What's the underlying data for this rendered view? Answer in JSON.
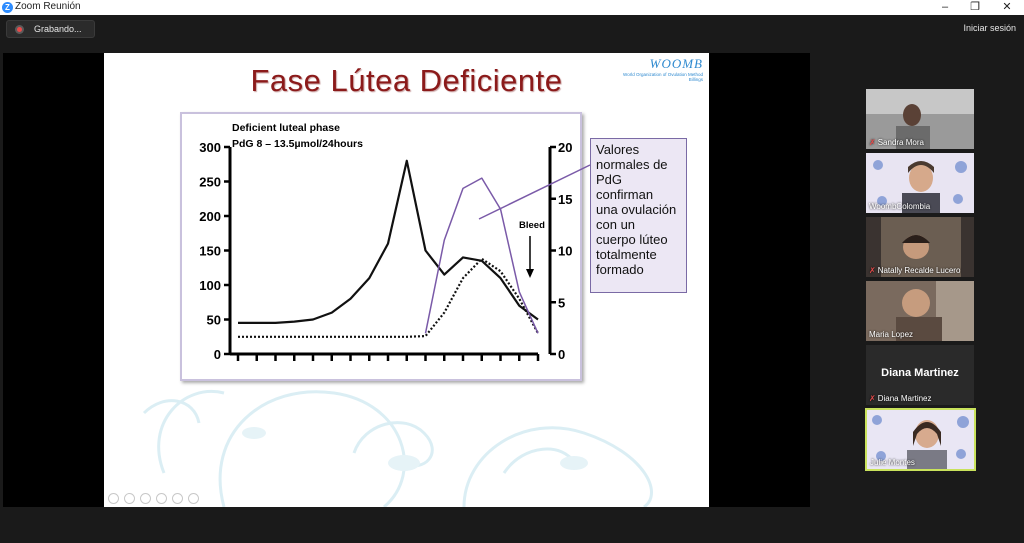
{
  "window": {
    "title": "Zoom Reunión",
    "minimize": "–",
    "maximize": "❐",
    "close": "✕"
  },
  "toolbar": {
    "recording_label": "Grabando...",
    "signin_label": "Iniciar sesión"
  },
  "slide": {
    "title": "Fase Lútea Deficiente",
    "logo_text": "WOOMB",
    "logo_subtext": "World Organization of Ovulation Method Billings",
    "callout_lines": [
      "Valores",
      "normales de",
      "PdG",
      "confirman",
      "una ovulación",
      "con un",
      "cuerpo lúteo",
      "totalmente",
      "formado"
    ]
  },
  "chart_data": {
    "type": "line",
    "title": "Deficient luteal phase",
    "subtitle": "PdG 8 – 13.5µmol/24hours",
    "annotation": "Bleed",
    "left_axis": {
      "ticks": [
        "300",
        "250",
        "200",
        "150",
        "100",
        "50",
        "0"
      ],
      "range": [
        0,
        300
      ]
    },
    "right_axis": {
      "ticks": [
        "20",
        "15",
        "10",
        "5",
        "0"
      ],
      "range": [
        0,
        20
      ]
    },
    "series": [
      {
        "name": "",
        "style": "solid-thick",
        "values": [
          45,
          45,
          45,
          47,
          50,
          60,
          80,
          110,
          160,
          280,
          150,
          115,
          140,
          135,
          110,
          70,
          50
        ]
      },
      {
        "name": "",
        "style": "dotted",
        "values": [
          25,
          25,
          25,
          25,
          25,
          25,
          25,
          25,
          25,
          25,
          26,
          60,
          110,
          138,
          120,
          80,
          30
        ]
      },
      {
        "name": "",
        "style": "solid-purple",
        "values": [
          null,
          null,
          null,
          null,
          null,
          null,
          null,
          null,
          null,
          null,
          2,
          11,
          16,
          17,
          14,
          6,
          2
        ]
      }
    ],
    "colors": {
      "main": "#111111",
      "normal": "#7a5aa8"
    }
  },
  "participants": [
    {
      "name": "Sandra Mora",
      "muted": true
    },
    {
      "name": "WoombColombia",
      "muted": false
    },
    {
      "name": "Natally Recalde Lucero",
      "muted": true
    },
    {
      "name": "Maria Lopez",
      "muted": false
    },
    {
      "name": "Diana Martinez",
      "muted": true,
      "display_name": "Diana Martinez"
    },
    {
      "name": "Julie Montes",
      "muted": false,
      "active": true
    }
  ]
}
